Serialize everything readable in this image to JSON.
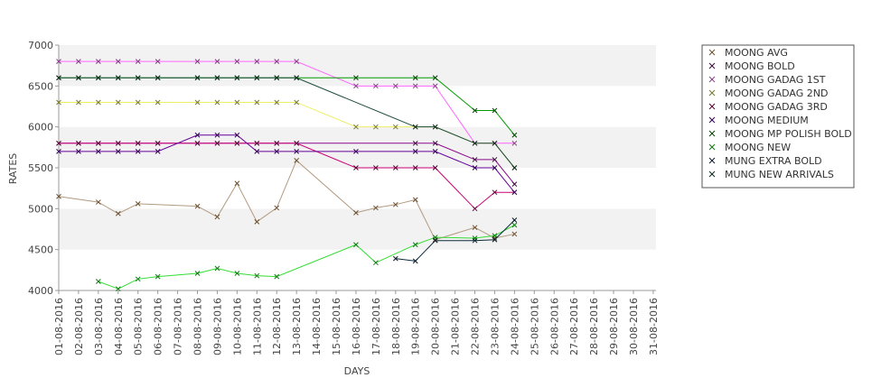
{
  "chart_data": {
    "type": "line",
    "xlabel": "DAYS",
    "ylabel": "RATES",
    "ylim": [
      4000,
      7000
    ],
    "yticks": [
      4000,
      4500,
      5000,
      5500,
      6000,
      6500,
      7000
    ],
    "categories": [
      "01-08-2016",
      "02-08-2016",
      "03-08-2016",
      "04-08-2016",
      "05-08-2016",
      "06-08-2016",
      "07-08-2016",
      "08-08-2016",
      "09-08-2016",
      "10-08-2016",
      "11-08-2016",
      "12-08-2016",
      "13-08-2016",
      "14-08-2016",
      "15-08-2016",
      "16-08-2016",
      "17-08-2016",
      "18-08-2016",
      "19-08-2016",
      "20-08-2016",
      "21-08-2016",
      "22-08-2016",
      "23-08-2016",
      "24-08-2016",
      "25-08-2016",
      "26-08-2016",
      "27-08-2016",
      "28-08-2016",
      "29-08-2016",
      "30-08-2016",
      "31-08-2016"
    ],
    "grid": "alternating horizontal bands",
    "legend_position": "right",
    "series": [
      {
        "name": "MOONG AVG",
        "color": "#b39a80",
        "marker": "#6b4e2e",
        "values": [
          5150,
          null,
          5080,
          4940,
          5060,
          null,
          null,
          5030,
          4900,
          5310,
          4840,
          5010,
          5590,
          null,
          null,
          4950,
          5010,
          5050,
          5110,
          4620,
          null,
          4770,
          4640,
          4690,
          null,
          null,
          null,
          null,
          null,
          null,
          null
        ]
      },
      {
        "name": "MOONG BOLD",
        "color": "#8a0a8a",
        "marker": "#3a0a3a",
        "values": [
          5800,
          5800,
          5800,
          5800,
          5800,
          5800,
          null,
          5800,
          5800,
          5800,
          5800,
          5800,
          5800,
          null,
          null,
          null,
          null,
          null,
          5800,
          5800,
          null,
          5600,
          5600,
          5300,
          null,
          null,
          null,
          null,
          null,
          null,
          null
        ]
      },
      {
        "name": "MOONG GADAG 1ST",
        "color": "#ff66ff",
        "marker": "#804080",
        "values": [
          6800,
          6800,
          6800,
          6800,
          6800,
          6800,
          null,
          6800,
          6800,
          6800,
          6800,
          6800,
          6800,
          null,
          null,
          6500,
          6500,
          6500,
          6500,
          6500,
          null,
          5800,
          5800,
          5800,
          null,
          null,
          null,
          null,
          null,
          null,
          null
        ]
      },
      {
        "name": "MOONG GADAG 2ND",
        "color": "#eeee66",
        "marker": "#777733",
        "values": [
          6300,
          6300,
          6300,
          6300,
          6300,
          6300,
          null,
          6300,
          6300,
          6300,
          6300,
          6300,
          6300,
          null,
          null,
          6000,
          6000,
          6000,
          6000,
          6000,
          null,
          5800,
          5800,
          5500,
          null,
          null,
          null,
          null,
          null,
          null,
          null
        ]
      },
      {
        "name": "MOONG GADAG 3RD",
        "color": "#cc0077",
        "marker": "#550033",
        "values": [
          5800,
          5800,
          5800,
          5800,
          5800,
          5800,
          null,
          5800,
          5800,
          5800,
          5800,
          5800,
          5800,
          null,
          null,
          5500,
          5500,
          5500,
          5500,
          5500,
          null,
          5000,
          5200,
          5200,
          null,
          null,
          null,
          null,
          null,
          null,
          null
        ]
      },
      {
        "name": "MOONG MEDIUM",
        "color": "#660099",
        "marker": "#330055",
        "values": [
          5700,
          5700,
          5700,
          5700,
          5700,
          5700,
          null,
          5900,
          5900,
          5900,
          5700,
          5700,
          5700,
          null,
          null,
          5700,
          null,
          null,
          5700,
          5700,
          null,
          5500,
          5500,
          5200,
          null,
          null,
          null,
          null,
          null,
          null,
          null
        ]
      },
      {
        "name": "MOONG MP POLISH BOLD",
        "color": "#009900",
        "marker": "#004400",
        "values": [
          6600,
          6600,
          6600,
          6600,
          6600,
          6600,
          null,
          6600,
          6600,
          6600,
          6600,
          6600,
          6600,
          null,
          null,
          6600,
          null,
          null,
          6600,
          6600,
          null,
          6200,
          6200,
          5900,
          null,
          null,
          null,
          null,
          null,
          null,
          null
        ]
      },
      {
        "name": "MOONG NEW",
        "color": "#33dd33",
        "marker": "#117711",
        "values": [
          null,
          null,
          4110,
          4020,
          4140,
          4170,
          null,
          4210,
          4270,
          4210,
          4180,
          4170,
          null,
          null,
          null,
          4560,
          4340,
          null,
          4560,
          4650,
          null,
          4640,
          4670,
          4800,
          null,
          null,
          null,
          null,
          null,
          null,
          null
        ]
      },
      {
        "name": "MUNG EXTRA BOLD",
        "color": "#0a2a3a",
        "marker": "#0a1a2a",
        "values": [
          null,
          null,
          null,
          null,
          null,
          null,
          null,
          null,
          null,
          null,
          null,
          null,
          null,
          null,
          null,
          null,
          null,
          4390,
          4360,
          4610,
          null,
          4610,
          4620,
          4860,
          null,
          null,
          null,
          null,
          null,
          null,
          null
        ]
      },
      {
        "name": "MUNG NEW ARRIVALS",
        "color": "#1a4a3a",
        "marker": "#0a2a1a",
        "values": [
          6600,
          6600,
          6600,
          6600,
          6600,
          6600,
          null,
          6600,
          6600,
          6600,
          6600,
          6600,
          6600,
          null,
          null,
          null,
          null,
          null,
          6000,
          6000,
          null,
          5800,
          5800,
          5500,
          null,
          null,
          null,
          null,
          null,
          null,
          null
        ]
      }
    ]
  }
}
